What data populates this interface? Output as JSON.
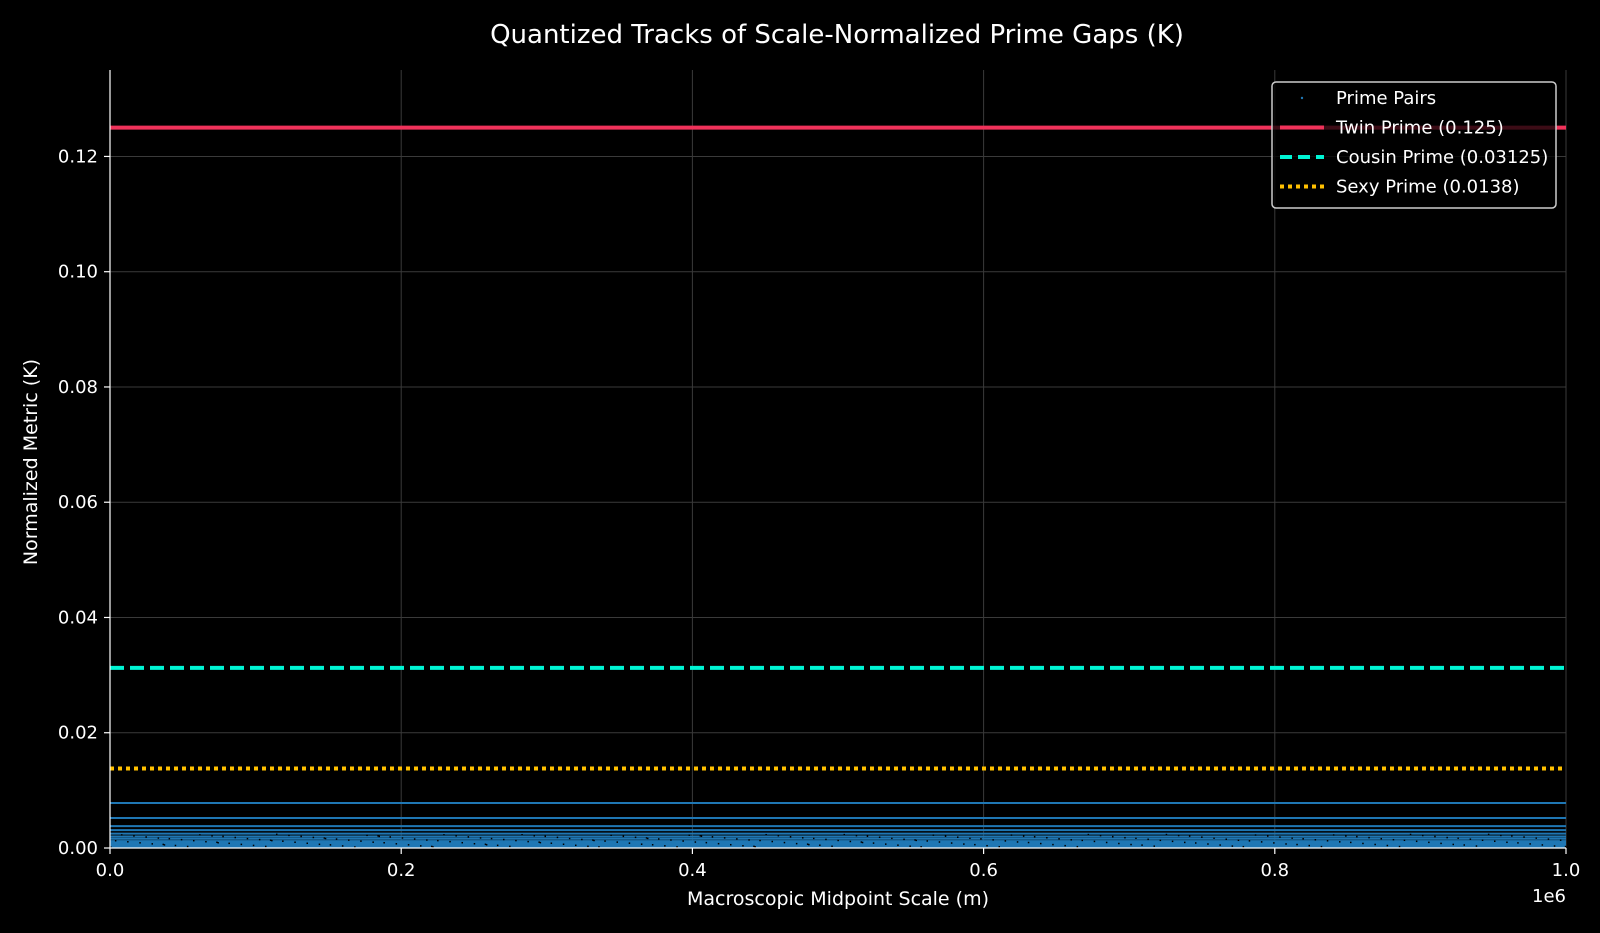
{
  "chart_data": {
    "type": "scatter",
    "title": "Quantized Tracks of Scale-Normalized Prime Gaps (K)",
    "xlabel": "Macroscopic Midpoint Scale (m)",
    "ylabel": "Normalized Metric (K)",
    "x_offset_label": "1e6",
    "xlim": [
      0,
      1000000
    ],
    "ylim": [
      0,
      0.135
    ],
    "xticks": [
      0,
      200000,
      400000,
      600000,
      800000,
      1000000
    ],
    "xtick_labels": [
      "0.0",
      "0.2",
      "0.4",
      "0.6",
      "0.8",
      "1.0"
    ],
    "yticks": [
      0,
      0.02,
      0.04,
      0.06,
      0.08,
      0.1,
      0.12
    ],
    "ytick_labels": [
      "0.00",
      "0.02",
      "0.04",
      "0.06",
      "0.08",
      "0.10",
      "0.12"
    ],
    "grid": true,
    "legend_position": "top-right",
    "series": [
      {
        "name": "Prime Pairs",
        "kind": "scatter",
        "color": "#1f77b4",
        "track_values": [
          0.0078,
          0.0052,
          0.0038,
          0.0031,
          0.0025,
          0.002,
          0.0016,
          0.0012,
          0.0009,
          0.0006,
          0.0003
        ]
      },
      {
        "name": "Twin Prime (0.125)",
        "kind": "hline",
        "y": 0.125,
        "color": "#f0325a",
        "style": "solid"
      },
      {
        "name": "Cousin Prime (0.03125)",
        "kind": "hline",
        "y": 0.03125,
        "color": "#00f5d4",
        "style": "dashed"
      },
      {
        "name": "Sexy Prime (0.0138)",
        "kind": "hline",
        "y": 0.0138,
        "color": "#ffc000",
        "style": "dotted"
      }
    ]
  }
}
